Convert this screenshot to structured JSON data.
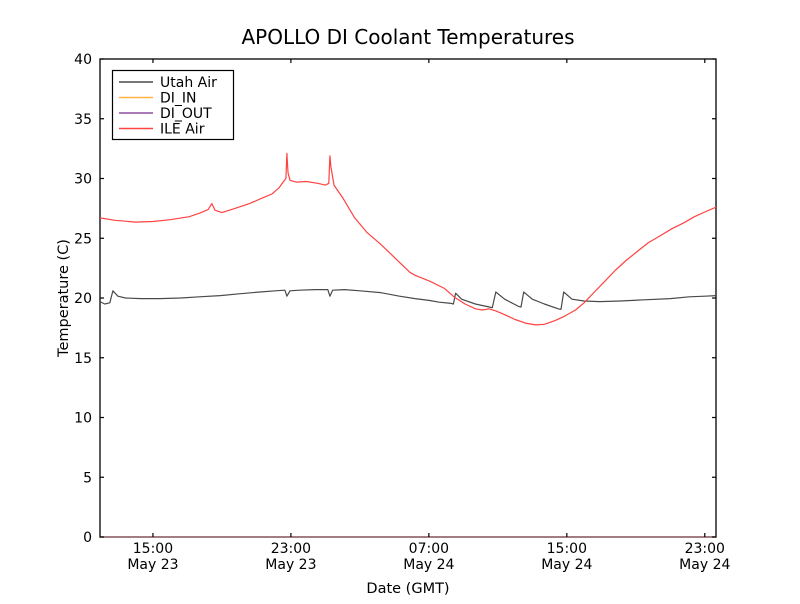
{
  "figure": {
    "background": "#ffffff",
    "axis_color": "#000000",
    "bottom_axis_blend_color": "#6f4f5c"
  },
  "chart_data": {
    "type": "line",
    "title": "APOLLO DI Coolant Temperatures",
    "xlabel": "Date (GMT)",
    "ylabel": "Temperature (C)",
    "ylim": [
      0,
      40
    ],
    "yticks": [
      0,
      5,
      10,
      15,
      20,
      25,
      30,
      35,
      40
    ],
    "x_unit": "hours_since_May_23_00:00_GMT",
    "xlim_hours": [
      11.93,
      47.65
    ],
    "xticks": [
      {
        "hours": 15,
        "line1": "15:00",
        "line2": "May 23"
      },
      {
        "hours": 23,
        "line1": "23:00",
        "line2": "May 23"
      },
      {
        "hours": 31,
        "line1": "07:00",
        "line2": "May 24"
      },
      {
        "hours": 39,
        "line1": "15:00",
        "line2": "May 24"
      },
      {
        "hours": 47,
        "line1": "23:00",
        "line2": "May 24"
      }
    ],
    "grid": false,
    "legend_position": "upper left",
    "series": [
      {
        "name": "Utah Air",
        "color": "#4a4a4a",
        "opacity": 1,
        "points": [
          [
            11.93,
            19.7
          ],
          [
            12.2,
            19.5
          ],
          [
            12.5,
            19.6
          ],
          [
            12.68,
            20.6
          ],
          [
            12.97,
            20.15
          ],
          [
            13.4,
            20.0
          ],
          [
            14.3,
            19.95
          ],
          [
            15.4,
            19.95
          ],
          [
            16.6,
            20.0
          ],
          [
            17.7,
            20.1
          ],
          [
            18.9,
            20.2
          ],
          [
            20.0,
            20.35
          ],
          [
            21.2,
            20.5
          ],
          [
            22.1,
            20.6
          ],
          [
            22.65,
            20.65
          ],
          [
            22.77,
            20.15
          ],
          [
            22.95,
            20.6
          ],
          [
            23.5,
            20.65
          ],
          [
            24.4,
            20.7
          ],
          [
            25.14,
            20.7
          ],
          [
            25.26,
            20.15
          ],
          [
            25.42,
            20.65
          ],
          [
            26.1,
            20.7
          ],
          [
            27.0,
            20.6
          ],
          [
            28.2,
            20.45
          ],
          [
            29.3,
            20.15
          ],
          [
            30.2,
            19.95
          ],
          [
            31.0,
            19.8
          ],
          [
            31.6,
            19.65
          ],
          [
            32.3,
            19.55
          ],
          [
            32.42,
            19.5
          ],
          [
            32.55,
            20.4
          ],
          [
            32.9,
            19.9
          ],
          [
            33.7,
            19.5
          ],
          [
            34.5,
            19.25
          ],
          [
            34.68,
            19.2
          ],
          [
            34.88,
            20.5
          ],
          [
            35.4,
            19.9
          ],
          [
            36.2,
            19.3
          ],
          [
            36.34,
            19.25
          ],
          [
            36.5,
            20.5
          ],
          [
            37.0,
            19.9
          ],
          [
            37.7,
            19.5
          ],
          [
            38.5,
            19.1
          ],
          [
            38.66,
            19.05
          ],
          [
            38.82,
            20.5
          ],
          [
            39.3,
            19.9
          ],
          [
            40.0,
            19.75
          ],
          [
            40.9,
            19.7
          ],
          [
            42.1,
            19.75
          ],
          [
            43.5,
            19.85
          ],
          [
            45.0,
            19.95
          ],
          [
            46.1,
            20.1
          ],
          [
            47.0,
            20.15
          ],
          [
            47.65,
            20.2
          ]
        ]
      },
      {
        "name": "DI_IN",
        "color": "#ffb347",
        "opacity": 0.55,
        "points": [
          [
            11.93,
            0
          ],
          [
            47.65,
            0
          ]
        ]
      },
      {
        "name": "DI_OUT",
        "color": "#8e4d9e",
        "opacity": 0.5,
        "points": [
          [
            11.93,
            0
          ],
          [
            47.65,
            0
          ]
        ]
      },
      {
        "name": "ILE Air",
        "color": "#ff4242",
        "opacity": 1,
        "points": [
          [
            11.93,
            26.7
          ],
          [
            12.8,
            26.5
          ],
          [
            14.0,
            26.35
          ],
          [
            15.0,
            26.4
          ],
          [
            16.0,
            26.55
          ],
          [
            17.1,
            26.8
          ],
          [
            17.7,
            27.1
          ],
          [
            18.2,
            27.4
          ],
          [
            18.42,
            27.9
          ],
          [
            18.6,
            27.35
          ],
          [
            19.0,
            27.15
          ],
          [
            19.75,
            27.5
          ],
          [
            20.6,
            27.9
          ],
          [
            21.4,
            28.4
          ],
          [
            21.9,
            28.7
          ],
          [
            22.3,
            29.2
          ],
          [
            22.55,
            29.7
          ],
          [
            22.71,
            30.0
          ],
          [
            22.77,
            32.1
          ],
          [
            22.83,
            30.5
          ],
          [
            22.95,
            29.85
          ],
          [
            23.3,
            29.7
          ],
          [
            23.9,
            29.75
          ],
          [
            24.55,
            29.6
          ],
          [
            25.0,
            29.45
          ],
          [
            25.2,
            29.6
          ],
          [
            25.26,
            31.9
          ],
          [
            25.32,
            31.0
          ],
          [
            25.5,
            29.45
          ],
          [
            26.0,
            28.4
          ],
          [
            26.7,
            26.7
          ],
          [
            27.4,
            25.5
          ],
          [
            28.2,
            24.5
          ],
          [
            29.0,
            23.4
          ],
          [
            29.9,
            22.15
          ],
          [
            30.2,
            21.9
          ],
          [
            31.07,
            21.4
          ],
          [
            31.9,
            20.8
          ],
          [
            32.5,
            20.05
          ],
          [
            33.1,
            19.5
          ],
          [
            33.7,
            19.1
          ],
          [
            34.1,
            19.0
          ],
          [
            34.5,
            19.1
          ],
          [
            34.9,
            18.9
          ],
          [
            35.4,
            18.6
          ],
          [
            36.0,
            18.2
          ],
          [
            36.6,
            17.9
          ],
          [
            37.2,
            17.75
          ],
          [
            37.7,
            17.8
          ],
          [
            38.3,
            18.1
          ],
          [
            38.9,
            18.5
          ],
          [
            39.5,
            19.0
          ],
          [
            40.0,
            19.6
          ],
          [
            40.6,
            20.5
          ],
          [
            41.2,
            21.4
          ],
          [
            41.8,
            22.3
          ],
          [
            42.4,
            23.1
          ],
          [
            43.0,
            23.8
          ],
          [
            43.7,
            24.6
          ],
          [
            44.4,
            25.2
          ],
          [
            45.1,
            25.8
          ],
          [
            45.8,
            26.3
          ],
          [
            46.4,
            26.8
          ],
          [
            47.0,
            27.2
          ],
          [
            47.65,
            27.6
          ]
        ]
      }
    ]
  }
}
